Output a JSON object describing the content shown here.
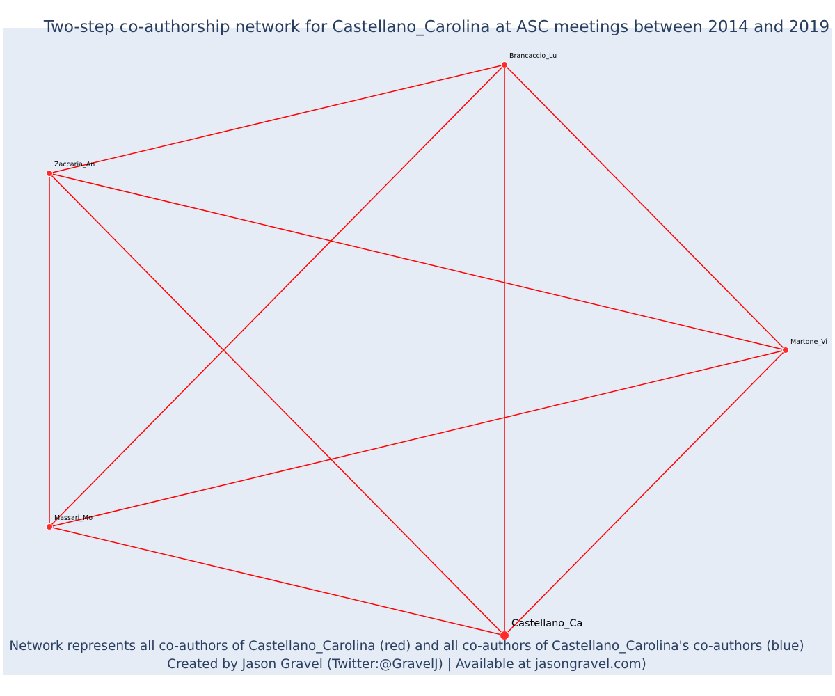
{
  "title": "Two-step co-authorship network for Castellano_Carolina at ASC meetings between 2014 and 2019",
  "footer": {
    "line1": "Network represents all co-authors of Castellano_Carolina (red) and all co-authors of Castellano_Carolina's co-authors (blue)",
    "line2": "Created by Jason Gravel (Twitter:@GravelJ) | Available at jasongravel.com)"
  },
  "colors": {
    "background": "#e5ecf6",
    "edge": "#ff0000",
    "node": "#ff2a2a",
    "node_outline": "#ffffff",
    "title_text": "#2a3f5f",
    "label_text": "#000000"
  },
  "nodes": [
    {
      "id": "castellano",
      "label": "Castellano_Ca",
      "group": "red",
      "focal": true
    },
    {
      "id": "brancaccio",
      "label": "Brancaccio_Lu",
      "group": "red",
      "focal": false
    },
    {
      "id": "zaccaria",
      "label": "Zaccaria_An",
      "group": "red",
      "focal": false
    },
    {
      "id": "martone",
      "label": "Martone_Vi",
      "group": "red",
      "focal": false
    },
    {
      "id": "massari",
      "label": "Massari_Mo",
      "group": "red",
      "focal": false
    }
  ],
  "edges": [
    [
      "castellano",
      "brancaccio"
    ],
    [
      "castellano",
      "zaccaria"
    ],
    [
      "castellano",
      "martone"
    ],
    [
      "castellano",
      "massari"
    ],
    [
      "brancaccio",
      "zaccaria"
    ],
    [
      "brancaccio",
      "martone"
    ],
    [
      "brancaccio",
      "massari"
    ],
    [
      "zaccaria",
      "martone"
    ],
    [
      "zaccaria",
      "massari"
    ],
    [
      "martone",
      "massari"
    ]
  ]
}
